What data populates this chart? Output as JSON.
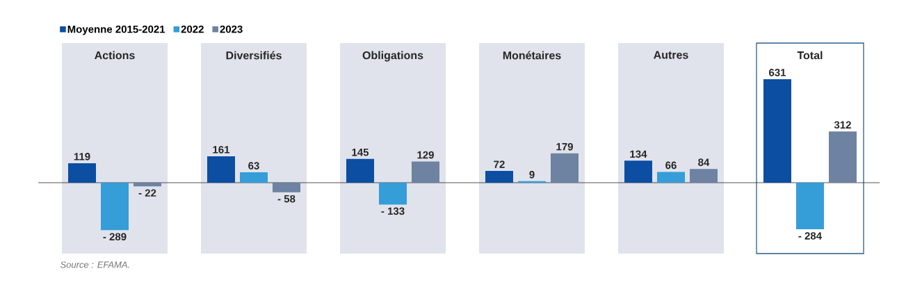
{
  "chart_data": {
    "type": "bar",
    "categories": [
      "Actions",
      "Diversifiés",
      "Obligations",
      "Monétaires",
      "Autres",
      "Total"
    ],
    "series": [
      {
        "name": "Moyenne 2015-2021",
        "color": "#0b4ea2",
        "values": [
          119,
          161,
          145,
          72,
          134,
          631
        ],
        "value_labels": [
          "119",
          "161",
          "145",
          "72",
          "134",
          "631"
        ]
      },
      {
        "name": "2022",
        "color": "#359dd8",
        "values": [
          -289,
          63,
          -133,
          9,
          66,
          -284
        ],
        "value_labels": [
          "- 289",
          "63",
          "- 133",
          "9",
          "66",
          "- 284"
        ]
      },
      {
        "name": "2023",
        "color": "#6e82a2",
        "values": [
          -22,
          -58,
          129,
          179,
          84,
          312
        ],
        "value_labels": [
          "- 22",
          "- 58",
          "129",
          "179",
          "84",
          "312"
        ]
      }
    ],
    "ylim": [
      -432,
      851
    ],
    "legend": "top left",
    "annotations": [
      "Source : EFAMA."
    ]
  }
}
